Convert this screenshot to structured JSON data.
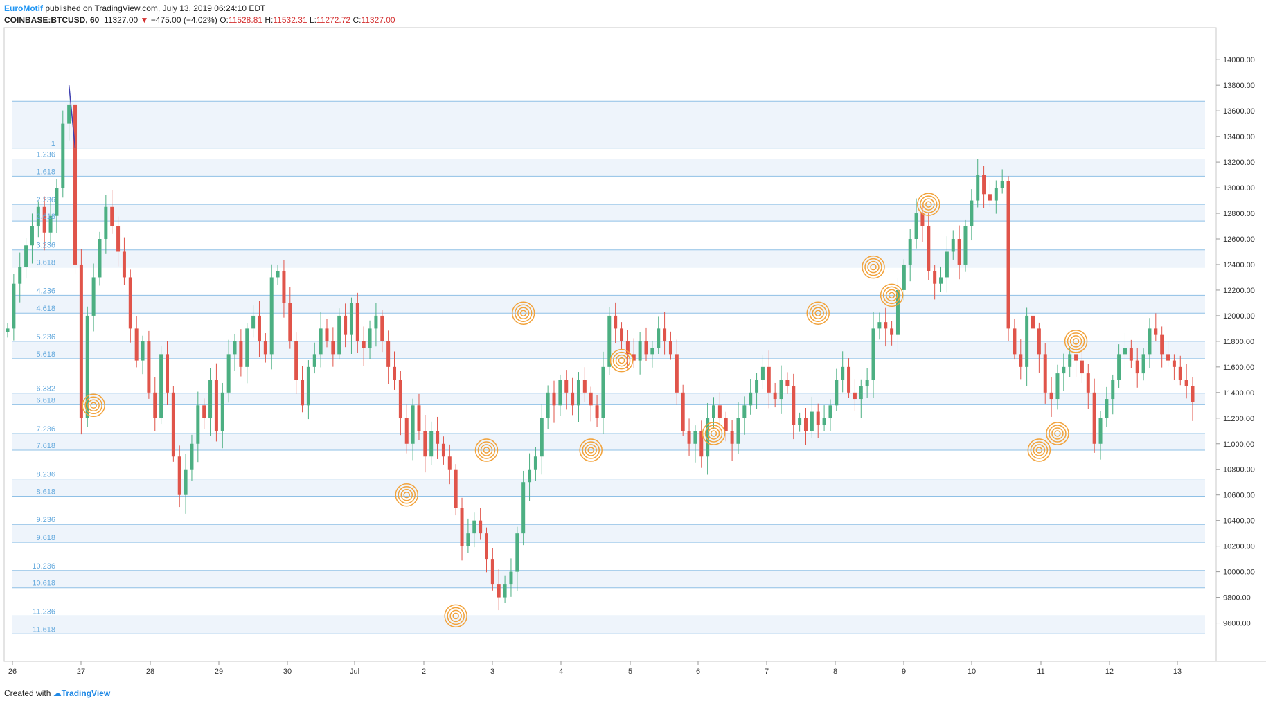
{
  "header": {
    "author": "EuroMotif",
    "published": "published on TradingView.com, July 13, 2019 06:24:10 EDT"
  },
  "ohlc": {
    "symbol": "COINBASE:BTCUSD, 60",
    "last": "11327.00",
    "arrow": "▼",
    "change": "−475.00 (−4.02%)",
    "o_label": "O:",
    "o": "11528.81",
    "h_label": "H:",
    "h": "11532.31",
    "l_label": "L:",
    "l": "11272.72",
    "c_label": "C:",
    "c": "11327.00"
  },
  "footer": {
    "created_with": "Created with",
    "brand": "TradingView"
  },
  "colors": {
    "up": "#4caf82",
    "down": "#e0544a",
    "fib_line": "#8fc0e6",
    "fib_label": "#64a9dd",
    "band": "#eef4fb",
    "circle": "#f2a23a",
    "trend": "#3f3fb0"
  },
  "chart_data": {
    "type": "candlestick",
    "title": "COINBASE:BTCUSD, 60",
    "ylim": [
      9300,
      14250
    ],
    "y_ticks": [
      "9600.00",
      "9800.00",
      "10000.00",
      "10200.00",
      "10400.00",
      "10600.00",
      "10800.00",
      "11000.00",
      "11200.00",
      "11400.00",
      "11600.00",
      "11800.00",
      "12000.00",
      "12200.00",
      "12400.00",
      "12600.00",
      "12800.00",
      "13000.00",
      "13200.00",
      "13400.00",
      "13600.00",
      "13800.00",
      "14000.00"
    ],
    "x_ticks": [
      "26",
      "27",
      "28",
      "29",
      "30",
      "Jul",
      "2",
      "3",
      "4",
      "5",
      "6",
      "7",
      "8",
      "9",
      "10",
      "11",
      "12",
      "13"
    ],
    "fib_levels": [
      {
        "label": "",
        "price": 13675
      },
      {
        "label": "1",
        "price": 13310
      },
      {
        "label": "1.236",
        "price": 13225
      },
      {
        "label": "1.618",
        "price": 13090
      },
      {
        "label": "2.236",
        "price": 12870
      },
      {
        "label": "2.618",
        "price": 12740
      },
      {
        "label": "3.236",
        "price": 12515
      },
      {
        "label": "3.618",
        "price": 12380
      },
      {
        "label": "4.236",
        "price": 12160
      },
      {
        "label": "4.618",
        "price": 12020
      },
      {
        "label": "5.236",
        "price": 11800
      },
      {
        "label": "5.618",
        "price": 11665
      },
      {
        "label": "6.382",
        "price": 11395
      },
      {
        "label": "6.618",
        "price": 11305
      },
      {
        "label": "7.236",
        "price": 11080
      },
      {
        "label": "7.618",
        "price": 10950
      },
      {
        "label": "8.236",
        "price": 10725
      },
      {
        "label": "8.618",
        "price": 10590
      },
      {
        "label": "9.236",
        "price": 10370
      },
      {
        "label": "9.618",
        "price": 10230
      },
      {
        "label": "10.236",
        "price": 10010
      },
      {
        "label": "10.618",
        "price": 9875
      },
      {
        "label": "11.236",
        "price": 9655
      },
      {
        "label": "11.618",
        "price": 9515
      }
    ],
    "closes": [
      11900,
      12250,
      12380,
      12550,
      12700,
      12850,
      12650,
      12780,
      13000,
      13500,
      13650,
      12400,
      11200,
      12000,
      12300,
      12600,
      12850,
      12700,
      12500,
      12300,
      11900,
      11650,
      11800,
      11400,
      11200,
      11700,
      11400,
      10900,
      10600,
      10800,
      11000,
      11300,
      11200,
      11500,
      11100,
      11400,
      11700,
      11800,
      11600,
      11900,
      12000,
      11800,
      11700,
      12300,
      12350,
      12100,
      11800,
      11500,
      11300,
      11600,
      11700,
      11900,
      11800,
      11700,
      12000,
      11850,
      12100,
      11800,
      11750,
      11900,
      12000,
      11800,
      11600,
      11500,
      11200,
      11000,
      11300,
      11100,
      10900,
      11100,
      11000,
      10900,
      10800,
      10500,
      10200,
      10300,
      10400,
      10300,
      10100,
      9900,
      9800,
      9900,
      10000,
      10300,
      10700,
      10800,
      10900,
      11200,
      11400,
      11300,
      11500,
      11400,
      11300,
      11500,
      11400,
      11300,
      11200,
      11600,
      12000,
      11900,
      11800,
      11700,
      11650,
      11800,
      11700,
      11750,
      11900,
      11800,
      11700,
      11400,
      11100,
      11000,
      11100,
      10900,
      11200,
      11300,
      11200,
      11100,
      11000,
      11200,
      11300,
      11400,
      11500,
      11600,
      11400,
      11350,
      11500,
      11450,
      11150,
      11200,
      11100,
      11250,
      11150,
      11200,
      11300,
      11500,
      11600,
      11400,
      11350,
      11450,
      11500,
      11900,
      11950,
      11900,
      11850,
      12200,
      12400,
      12600,
      12800,
      12700,
      12350,
      12250,
      12300,
      12500,
      12600,
      12400,
      12700,
      12900,
      13100,
      12950,
      12900,
      13000,
      13050,
      11900,
      11700,
      11600,
      12000,
      11900,
      11700,
      11400,
      11350,
      11550,
      11600,
      11700,
      11650,
      11550,
      11400,
      11000,
      11200,
      11350,
      11500,
      11700,
      11750,
      11650,
      11550,
      11700,
      11900,
      11850,
      11700,
      11650,
      11600,
      11500,
      11450,
      11327
    ],
    "markers": [
      {
        "x_index": 14,
        "price": 11300
      },
      {
        "x_index": 73,
        "price": 9655
      },
      {
        "x_index": 65,
        "price": 10600
      },
      {
        "x_index": 78,
        "price": 10950
      },
      {
        "x_index": 84,
        "price": 12020
      },
      {
        "x_index": 95,
        "price": 10950
      },
      {
        "x_index": 100,
        "price": 11650
      },
      {
        "x_index": 115,
        "price": 11080
      },
      {
        "x_index": 132,
        "price": 12020
      },
      {
        "x_index": 141,
        "price": 12380
      },
      {
        "x_index": 144,
        "price": 12160
      },
      {
        "x_index": 150,
        "price": 12870
      },
      {
        "x_index": 168,
        "price": 10950
      },
      {
        "x_index": 171,
        "price": 11080
      },
      {
        "x_index": 174,
        "price": 11800
      }
    ]
  }
}
